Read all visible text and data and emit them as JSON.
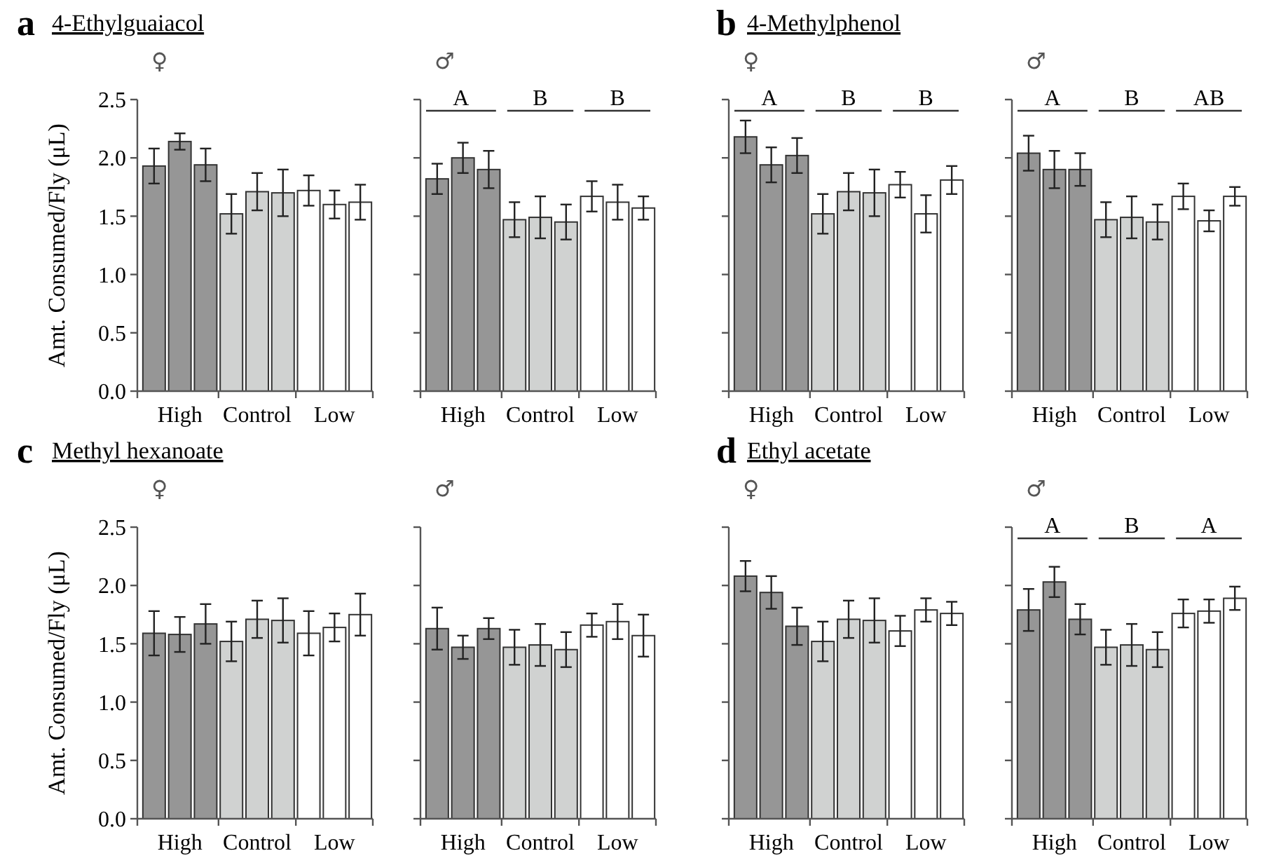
{
  "chart_data": [
    {
      "type": "bar",
      "title": "4-Ethylguaiacol",
      "ylabel": "Amt. Consumed/Fly (μL)",
      "annotations": [
        "a",
        "♀"
      ],
      "categories": [
        null,
        "High",
        null,
        null,
        "Control",
        null,
        null,
        "Low",
        null
      ],
      "ylim": [
        0,
        2.5
      ],
      "yticks": [
        {
          "value": 0,
          "label": "0.0"
        },
        0.5,
        {
          "value": 1,
          "label": "1.0"
        },
        1.5,
        {
          "value": 2,
          "label": "2.0"
        },
        2.5
      ],
      "series": [
        {
          "colors": [
            "#969696",
            "#969696",
            "#969696",
            "#d0d2d1",
            "#d0d2d1",
            "#d0d2d1",
            "#ffffff",
            "#ffffff",
            "#ffffff"
          ],
          "values": [
            1.93,
            2.14,
            1.94,
            1.52,
            1.71,
            1.7,
            1.72,
            1.6,
            1.62
          ],
          "errors": [
            0.15,
            0.07,
            0.14,
            0.17,
            0.16,
            0.2,
            0.13,
            0.12,
            0.15
          ]
        }
      ]
    },
    {
      "type": "bar",
      "annotations": [
        "♂",
        "A",
        "B",
        "B"
      ],
      "tick_labels": "x",
      "categories": [
        null,
        "High",
        null,
        null,
        "Control",
        null,
        null,
        "Low",
        null
      ],
      "ylim": [
        0,
        2.5
      ],
      "yticks": [
        {
          "value": 0,
          "label": null
        },
        {
          "value": 0.5,
          "label": null
        },
        {
          "value": 1,
          "label": null
        },
        {
          "value": 1.5,
          "label": null
        },
        {
          "value": 2,
          "label": null
        },
        {
          "value": 2.5,
          "label": null
        }
      ],
      "series": [
        {
          "colors": [
            "#969696",
            "#969696",
            "#969696",
            "#d0d2d1",
            "#d0d2d1",
            "#d0d2d1",
            "#ffffff",
            "#ffffff",
            "#ffffff"
          ],
          "values": [
            1.82,
            2.0,
            1.9,
            1.47,
            1.49,
            1.45,
            1.67,
            1.62,
            1.57
          ],
          "errors": [
            0.13,
            0.13,
            0.16,
            0.15,
            0.18,
            0.15,
            0.13,
            0.15,
            0.1
          ]
        }
      ]
    },
    {
      "type": "bar",
      "title": "4-Methylphenol",
      "annotations": [
        "b",
        "♀",
        "A",
        "B",
        "B"
      ],
      "tick_labels": "x",
      "categories": [
        null,
        "High",
        null,
        null,
        "Control",
        null,
        null,
        "Low",
        null
      ],
      "ylim": [
        0,
        2.5
      ],
      "yticks": [
        {
          "value": 0,
          "label": null
        },
        {
          "value": 0.5,
          "label": null
        },
        {
          "value": 1,
          "label": null
        },
        {
          "value": 1.5,
          "label": null
        },
        {
          "value": 2,
          "label": null
        },
        {
          "value": 2.5,
          "label": null
        }
      ],
      "series": [
        {
          "colors": [
            "#969696",
            "#969696",
            "#969696",
            "#d0d2d1",
            "#d0d2d1",
            "#d0d2d1",
            "#ffffff",
            "#ffffff",
            "#ffffff"
          ],
          "values": [
            2.18,
            1.94,
            2.02,
            1.52,
            1.71,
            1.7,
            1.77,
            1.52,
            1.81
          ],
          "errors": [
            0.14,
            0.15,
            0.15,
            0.17,
            0.16,
            0.2,
            0.11,
            0.16,
            0.12
          ]
        }
      ]
    },
    {
      "type": "bar",
      "annotations": [
        "♂",
        "A",
        "B",
        "AB"
      ],
      "tick_labels": "x",
      "categories": [
        null,
        "High",
        null,
        null,
        "Control",
        null,
        null,
        "Low",
        null
      ],
      "ylim": [
        0,
        2.5
      ],
      "yticks": [
        {
          "value": 0,
          "label": null
        },
        {
          "value": 0.5,
          "label": null
        },
        {
          "value": 1,
          "label": null
        },
        {
          "value": 1.5,
          "label": null
        },
        {
          "value": 2,
          "label": null
        },
        {
          "value": 2.5,
          "label": null
        }
      ],
      "series": [
        {
          "colors": [
            "#969696",
            "#969696",
            "#969696",
            "#d0d2d1",
            "#d0d2d1",
            "#d0d2d1",
            "#ffffff",
            "#ffffff",
            "#ffffff"
          ],
          "values": [
            2.04,
            1.9,
            1.9,
            1.47,
            1.49,
            1.45,
            1.67,
            1.46,
            1.67
          ],
          "errors": [
            0.15,
            0.16,
            0.14,
            0.15,
            0.18,
            0.15,
            0.11,
            0.09,
            0.08
          ]
        }
      ]
    },
    {
      "type": "bar",
      "title": "Methyl hexanoate",
      "ylabel": "Amt. Consumed/Fly (μL)",
      "annotations": [
        "c",
        "♀"
      ],
      "categories": [
        null,
        "High",
        null,
        null,
        "Control",
        null,
        null,
        "Low",
        null
      ],
      "ylim": [
        0,
        2.5
      ],
      "yticks": [
        {
          "value": 0,
          "label": "0.0"
        },
        0.5,
        {
          "value": 1,
          "label": "1.0"
        },
        1.5,
        {
          "value": 2,
          "label": "2.0"
        },
        2.5
      ],
      "series": [
        {
          "colors": [
            "#969696",
            "#969696",
            "#969696",
            "#d0d2d1",
            "#d0d2d1",
            "#d0d2d1",
            "#ffffff",
            "#ffffff",
            "#ffffff"
          ],
          "values": [
            1.59,
            1.58,
            1.67,
            1.52,
            1.71,
            1.7,
            1.59,
            1.64,
            1.75
          ],
          "errors": [
            0.19,
            0.15,
            0.17,
            0.17,
            0.16,
            0.19,
            0.19,
            0.12,
            0.18
          ]
        }
      ]
    },
    {
      "type": "bar",
      "annotations": [
        "♂"
      ],
      "tick_labels": "x",
      "categories": [
        null,
        "High",
        null,
        null,
        "Control",
        null,
        null,
        "Low",
        null
      ],
      "ylim": [
        0,
        2.5
      ],
      "yticks": [
        {
          "value": 0,
          "label": null
        },
        {
          "value": 0.5,
          "label": null
        },
        {
          "value": 1,
          "label": null
        },
        {
          "value": 1.5,
          "label": null
        },
        {
          "value": 2,
          "label": null
        },
        {
          "value": 2.5,
          "label": null
        }
      ],
      "series": [
        {
          "colors": [
            "#969696",
            "#969696",
            "#969696",
            "#d0d2d1",
            "#d0d2d1",
            "#d0d2d1",
            "#ffffff",
            "#ffffff",
            "#ffffff"
          ],
          "values": [
            1.63,
            1.47,
            1.63,
            1.47,
            1.49,
            1.45,
            1.66,
            1.69,
            1.57
          ],
          "errors": [
            0.18,
            0.1,
            0.09,
            0.15,
            0.18,
            0.15,
            0.1,
            0.15,
            0.18
          ]
        }
      ]
    },
    {
      "type": "bar",
      "title": "Ethyl acetate",
      "annotations": [
        "d",
        "♀"
      ],
      "tick_labels": "x",
      "categories": [
        null,
        "High",
        null,
        null,
        "Control",
        null,
        null,
        "Low",
        null
      ],
      "ylim": [
        0,
        2.5
      ],
      "yticks": [
        {
          "value": 0,
          "label": null
        },
        {
          "value": 0.5,
          "label": null
        },
        {
          "value": 1,
          "label": null
        },
        {
          "value": 1.5,
          "label": null
        },
        {
          "value": 2,
          "label": null
        },
        {
          "value": 2.5,
          "label": null
        }
      ],
      "series": [
        {
          "colors": [
            "#969696",
            "#969696",
            "#969696",
            "#d0d2d1",
            "#d0d2d1",
            "#d0d2d1",
            "#ffffff",
            "#ffffff",
            "#ffffff"
          ],
          "values": [
            2.08,
            1.94,
            1.65,
            1.52,
            1.71,
            1.7,
            1.61,
            1.79,
            1.76
          ],
          "errors": [
            0.13,
            0.14,
            0.16,
            0.17,
            0.16,
            0.19,
            0.13,
            0.1,
            0.1
          ]
        }
      ]
    },
    {
      "type": "bar",
      "annotations": [
        "♂",
        "A",
        "B",
        "A"
      ],
      "tick_labels": "x",
      "categories": [
        null,
        "High",
        null,
        null,
        "Control",
        null,
        null,
        "Low",
        null
      ],
      "ylim": [
        0,
        2.5
      ],
      "yticks": [
        {
          "value": 0,
          "label": null
        },
        {
          "value": 0.5,
          "label": null
        },
        {
          "value": 1,
          "label": null
        },
        {
          "value": 1.5,
          "label": null
        },
        {
          "value": 2,
          "label": null
        },
        {
          "value": 2.5,
          "label": null
        }
      ],
      "series": [
        {
          "colors": [
            "#969696",
            "#969696",
            "#969696",
            "#d0d2d1",
            "#d0d2d1",
            "#d0d2d1",
            "#ffffff",
            "#ffffff",
            "#ffffff"
          ],
          "values": [
            1.79,
            2.03,
            1.71,
            1.47,
            1.49,
            1.45,
            1.76,
            1.78,
            1.89
          ],
          "errors": [
            0.18,
            0.13,
            0.13,
            0.15,
            0.18,
            0.15,
            0.12,
            0.1,
            0.1
          ]
        }
      ]
    }
  ]
}
